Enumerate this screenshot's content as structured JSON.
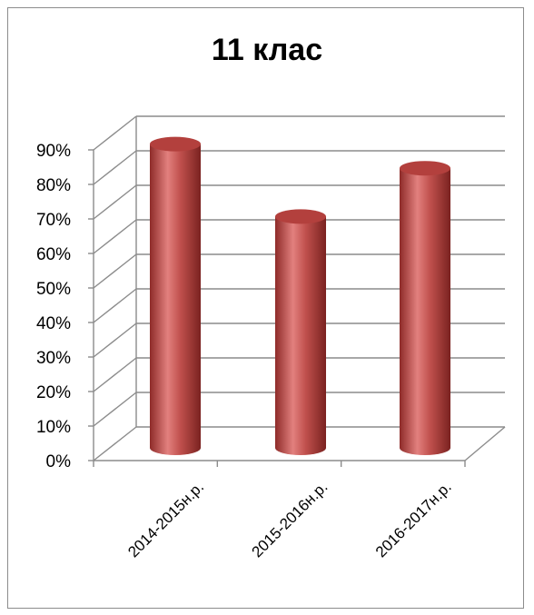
{
  "chart_data": {
    "type": "bar",
    "title": "11 клас",
    "categories": [
      "2014-2015н.р.",
      "2015-2016н.р.",
      "2016-2017н.р."
    ],
    "values": [
      88,
      67,
      81
    ],
    "ylim": [
      0,
      90
    ],
    "yticks": [
      "0%",
      "10%",
      "20%",
      "30%",
      "40%",
      "50%",
      "60%",
      "70%",
      "80%",
      "90%"
    ],
    "grid": true,
    "style": "3d-cylinder",
    "bar_color": "#c0504d"
  }
}
